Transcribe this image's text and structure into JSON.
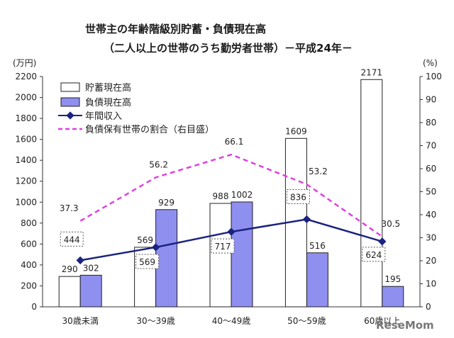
{
  "chart_data": {
    "type": "bar",
    "title": "世帯主の年齢階級別貯蓄・負債現在高",
    "subtitle": "（二人以上の世帯のうち勤労者世帯）－平成24年－",
    "y_left_unit": "(万円)",
    "y_right_unit": "(%)",
    "y_left_ticks": [
      "0",
      "200",
      "400",
      "600",
      "800",
      "1000",
      "1200",
      "1400",
      "1600",
      "1800",
      "2000",
      "2200"
    ],
    "y_right_ticks": [
      "0",
      "10",
      "20",
      "30",
      "40",
      "50",
      "60",
      "70",
      "80",
      "90",
      "100"
    ],
    "ylim_left": [
      0,
      2200
    ],
    "ylim_right": [
      0,
      100
    ],
    "categories": [
      "30歳未満",
      "30～39歳",
      "40～49歳",
      "50～59歳",
      "60歳以上"
    ],
    "series": [
      {
        "name": "貯蓄現在高",
        "type": "bar",
        "axis": "left",
        "color": "#ffffff",
        "values": [
          290,
          569,
          988,
          1609,
          2171
        ]
      },
      {
        "name": "負債現在高",
        "type": "bar",
        "axis": "left",
        "color": "#8f8ff0",
        "values": [
          302,
          929,
          1002,
          516,
          195
        ]
      },
      {
        "name": "年間収入",
        "type": "line",
        "axis": "left",
        "color": "#1a237e",
        "values": [
          444,
          569,
          717,
          836,
          624
        ]
      },
      {
        "name": "負債保有世帯の割合（右目盛）",
        "type": "line",
        "axis": "right",
        "color": "#e040e0",
        "values": [
          37.3,
          56.2,
          66.1,
          53.2,
          30.5
        ]
      }
    ],
    "savings_labels": [
      "290",
      "569",
      "988",
      "1609",
      "2171"
    ],
    "debt_labels": [
      "302",
      "929",
      "1002",
      "516",
      "195"
    ],
    "income_labels": [
      "444",
      "569",
      "717",
      "836",
      "624"
    ],
    "ratio_labels": [
      "37.3",
      "56.2",
      "66.1",
      "53.2",
      "30.5"
    ],
    "legend_position": "top-left",
    "grid": false
  },
  "watermark": "ReseMom"
}
